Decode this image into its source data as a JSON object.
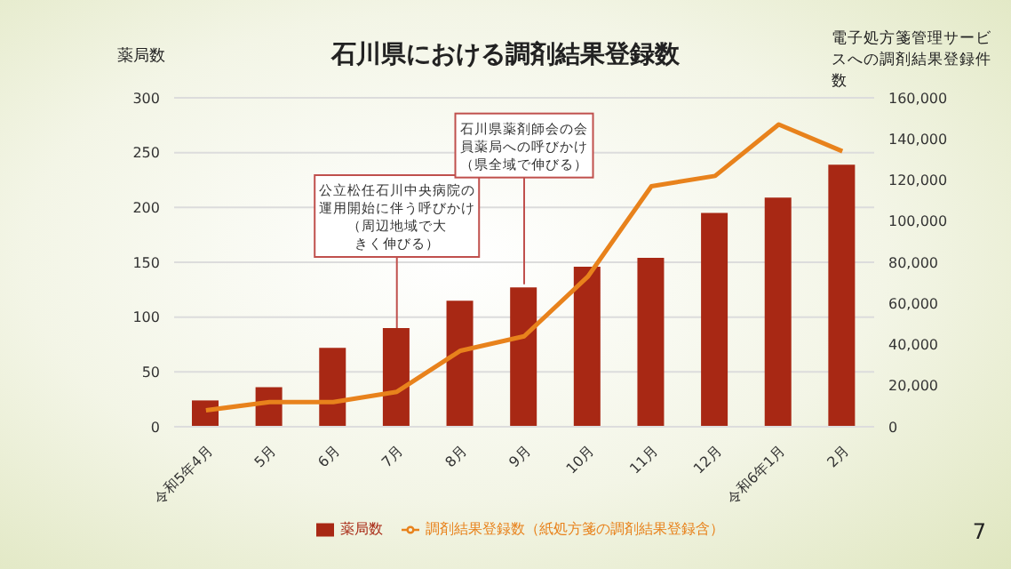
{
  "chart_data": {
    "type": "bar",
    "title": "石川県における調剤結果登録数",
    "ylabel": "薬局数",
    "y2label": "電子処方箋管理サービスへの調剤結果登録件数",
    "categories": [
      "令和5年4月",
      "5月",
      "6月",
      "7月",
      "8月",
      "9月",
      "10月",
      "11月",
      "12月",
      "令和6年1月",
      "2月"
    ],
    "series": [
      {
        "name": "薬局数",
        "color": "#a82814",
        "values": [
          24,
          36,
          72,
          90,
          115,
          127,
          146,
          154,
          195,
          209,
          239
        ]
      },
      {
        "name": "調剤結果登録数（紙処方箋の調剤結果登録含）",
        "type": "line",
        "axis": "y2",
        "color": "#e8821c",
        "values": [
          8000,
          12000,
          12000,
          17000,
          37000,
          44000,
          73000,
          117000,
          122000,
          147000,
          134000
        ]
      }
    ],
    "ylim": [
      0,
      300
    ],
    "yticks": [
      0,
      50,
      100,
      150,
      200,
      250,
      300
    ],
    "y2lim": [
      0,
      160000
    ],
    "y2ticks": [
      0,
      {
        "value": 20000,
        "label": "20,000"
      },
      {
        "value": 40000,
        "label": "40,000"
      },
      {
        "value": 60000,
        "label": "60,000"
      },
      {
        "value": 80000,
        "label": "80,000"
      },
      {
        "value": 100000,
        "label": "100,000"
      },
      {
        "value": 120000,
        "label": "120,000"
      },
      {
        "value": 140000,
        "label": "140,000"
      },
      {
        "value": 160000,
        "label": "160,000"
      }
    ],
    "grid": "y",
    "legend": "bottom",
    "marker": "none",
    "annotations": [
      {
        "text": "公立松任石川中央病院の運用開始に伴う呼びかけ（周辺地域で大きく伸びる）",
        "x": "7月",
        "y": 90
      },
      {
        "text": "石川県薬剤師会の会員薬局への呼びかけ（県全域で伸びる）",
        "x": "9月",
        "y": 130
      },
      "7"
    ]
  }
}
